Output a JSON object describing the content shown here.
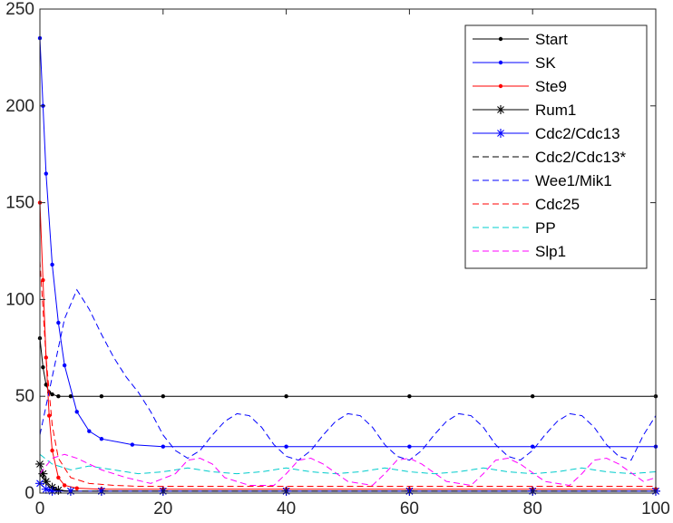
{
  "chart_data": {
    "type": "line",
    "title": "",
    "xlabel": "",
    "ylabel": "",
    "xlim": [
      0,
      100
    ],
    "ylim": [
      0,
      250
    ],
    "xticks": [
      "0",
      "20",
      "40",
      "60",
      "80",
      "100"
    ],
    "yticks": [
      "0",
      "50",
      "100",
      "150",
      "200",
      "250"
    ],
    "grid": false,
    "legend_position": "top-right",
    "series": [
      {
        "name": "Start",
        "color": "#000000",
        "line": "solid",
        "marker": "dot",
        "x": [
          0,
          0.5,
          1,
          1.5,
          2,
          3,
          5,
          10,
          20,
          40,
          60,
          80,
          100
        ],
        "y": [
          80,
          65,
          56,
          52,
          51,
          50,
          50,
          50,
          50,
          50,
          50,
          50,
          50
        ]
      },
      {
        "name": "SK",
        "color": "#0000ff",
        "line": "solid",
        "marker": "dot",
        "x": [
          0,
          0.5,
          1,
          2,
          3,
          4,
          6,
          8,
          10,
          15,
          20,
          40,
          60,
          80,
          100
        ],
        "y": [
          235,
          200,
          165,
          118,
          88,
          66,
          42,
          32,
          28,
          25,
          24,
          24,
          24,
          24,
          24
        ]
      },
      {
        "name": "Ste9",
        "color": "#ff0000",
        "line": "solid",
        "marker": "dot",
        "x": [
          0,
          0.5,
          1,
          1.5,
          2,
          3,
          4,
          6,
          10,
          20,
          40,
          60,
          80,
          100
        ],
        "y": [
          150,
          110,
          70,
          40,
          22,
          8,
          4,
          2.5,
          2,
          2,
          2,
          2,
          2,
          2
        ]
      },
      {
        "name": "Rum1",
        "color": "#000000",
        "line": "solid",
        "marker": "asterisk",
        "x": [
          0,
          0.5,
          1,
          2,
          3,
          5,
          10,
          20,
          40,
          60,
          80,
          100
        ],
        "y": [
          15,
          10,
          6,
          3,
          1.5,
          1,
          1,
          1,
          1,
          1,
          1,
          1
        ]
      },
      {
        "name": "Cdc2/Cdc13",
        "color": "#0000ff",
        "line": "solid",
        "marker": "asterisk",
        "x": [
          0,
          1,
          2,
          5,
          10,
          20,
          40,
          60,
          80,
          100
        ],
        "y": [
          5,
          2,
          1,
          1,
          1,
          1,
          1,
          1,
          1,
          1
        ]
      },
      {
        "name": "Cdc2/Cdc13*",
        "color": "#000000",
        "line": "dashed",
        "marker": "none",
        "x": [
          0,
          1,
          2,
          4,
          10,
          20,
          40,
          60,
          80,
          100
        ],
        "y": [
          10,
          5,
          2,
          1,
          1,
          1,
          1,
          1,
          1,
          1
        ]
      },
      {
        "name": "Wee1/Mik1",
        "color": "#0000ff",
        "line": "dashed",
        "marker": "none",
        "x": [
          0,
          2,
          4,
          6,
          8,
          10,
          12,
          14,
          16,
          18,
          20,
          22,
          24,
          26,
          28,
          30,
          32,
          34,
          36,
          38,
          40,
          42,
          44,
          46,
          48,
          50,
          52,
          54,
          56,
          58,
          60,
          62,
          64,
          66,
          68,
          70,
          72,
          74,
          76,
          78,
          80,
          82,
          84,
          86,
          88,
          90,
          92,
          94,
          96,
          98,
          100
        ],
        "y": [
          30,
          60,
          90,
          105,
          95,
          82,
          70,
          60,
          52,
          42,
          30,
          22,
          18,
          22,
          30,
          37,
          41,
          40,
          34,
          25,
          19,
          17,
          22,
          30,
          37,
          41,
          40,
          34,
          25,
          19,
          17,
          22,
          30,
          37,
          41,
          40,
          34,
          25,
          19,
          17,
          22,
          30,
          37,
          41,
          40,
          34,
          25,
          19,
          17,
          30,
          40
        ]
      },
      {
        "name": "Cdc25",
        "color": "#ff0000",
        "line": "dashed",
        "marker": "none",
        "x": [
          0,
          1,
          2,
          3,
          5,
          8,
          12,
          16,
          20,
          30,
          40,
          50,
          60,
          70,
          80,
          90,
          100
        ],
        "y": [
          120,
          70,
          35,
          18,
          8,
          5,
          4,
          3.5,
          3.5,
          3.5,
          3.5,
          3.5,
          3.5,
          3.5,
          3.5,
          3.5,
          3.5
        ]
      },
      {
        "name": "PP",
        "color": "#00cccc",
        "line": "dashed",
        "marker": "none",
        "x": [
          0,
          2,
          5,
          8,
          12,
          16,
          20,
          24,
          28,
          32,
          36,
          40,
          44,
          48,
          52,
          56,
          60,
          64,
          68,
          72,
          76,
          80,
          84,
          88,
          92,
          96,
          100
        ],
        "y": [
          20,
          15,
          12,
          14,
          12,
          10,
          11,
          13,
          11,
          10,
          11,
          13,
          11,
          10,
          11,
          13,
          11,
          10,
          11,
          13,
          11,
          10,
          11,
          13,
          11,
          10,
          11
        ]
      },
      {
        "name": "Slp1",
        "color": "#ff00ff",
        "line": "dashed",
        "marker": "none",
        "x": [
          0,
          2,
          4,
          6,
          8,
          10,
          14,
          18,
          22,
          24,
          26,
          28,
          30,
          34,
          38,
          40,
          42,
          44,
          46,
          50,
          54,
          56,
          58,
          60,
          62,
          66,
          70,
          72,
          74,
          76,
          78,
          82,
          86,
          88,
          90,
          92,
          94,
          98,
          100
        ],
        "y": [
          10,
          18,
          20,
          18,
          15,
          12,
          8,
          5,
          10,
          17,
          18,
          15,
          8,
          4,
          4,
          10,
          17,
          18,
          15,
          6,
          4,
          10,
          17,
          18,
          15,
          6,
          4,
          10,
          17,
          18,
          15,
          6,
          4,
          10,
          17,
          18,
          15,
          6,
          8
        ]
      }
    ]
  }
}
